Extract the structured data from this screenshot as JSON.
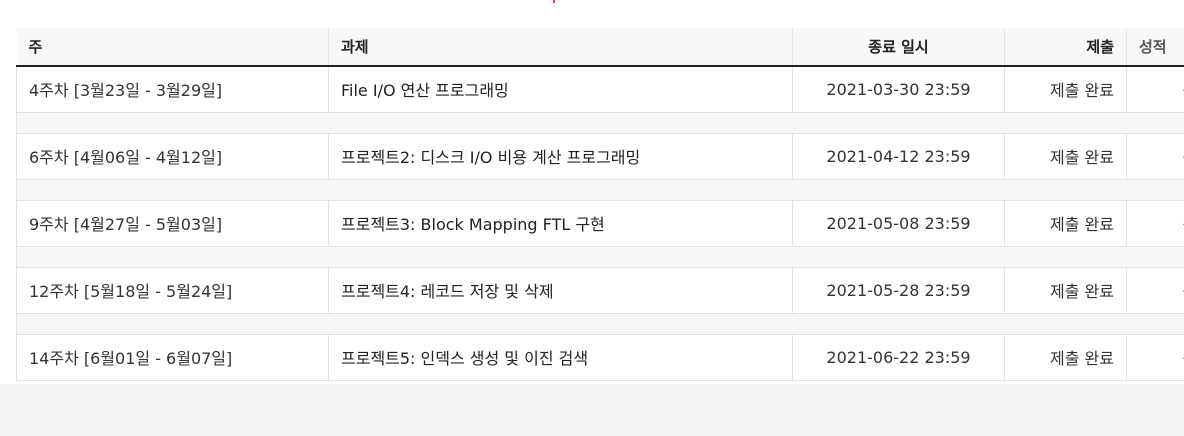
{
  "headers": {
    "week": "주",
    "task": "과제",
    "due": "종료 일시",
    "submission": "제출",
    "grade": "성적"
  },
  "rows": [
    {
      "week": "4주차 [3월23일 - 3월29일]",
      "task": "File I/O 연산 프로그래밍",
      "due": "2021-03-30 23:59",
      "submission": "제출 완료",
      "grade": "-"
    },
    {
      "week": "6주차 [4월06일 - 4월12일]",
      "task": "프로젝트2: 디스크 I/O 비용 계산 프로그래밍",
      "due": "2021-04-12 23:59",
      "submission": "제출 완료",
      "grade": "-"
    },
    {
      "week": "9주차 [4월27일 - 5월03일]",
      "task": "프로젝트3: Block Mapping FTL 구현",
      "due": "2021-05-08 23:59",
      "submission": "제출 완료",
      "grade": "-"
    },
    {
      "week": "12주차 [5월18일 - 5월24일]",
      "task": "프로젝트4: 레코드 저장 및 삭제",
      "due": "2021-05-28 23:59",
      "submission": "제출 완료",
      "grade": "-"
    },
    {
      "week": "14주차 [6월01일 - 6월07일]",
      "task": "프로젝트5: 인덱스 생성 및 이진 검색",
      "due": "2021-06-22 23:59",
      "submission": "제출 완료",
      "grade": "-"
    }
  ]
}
